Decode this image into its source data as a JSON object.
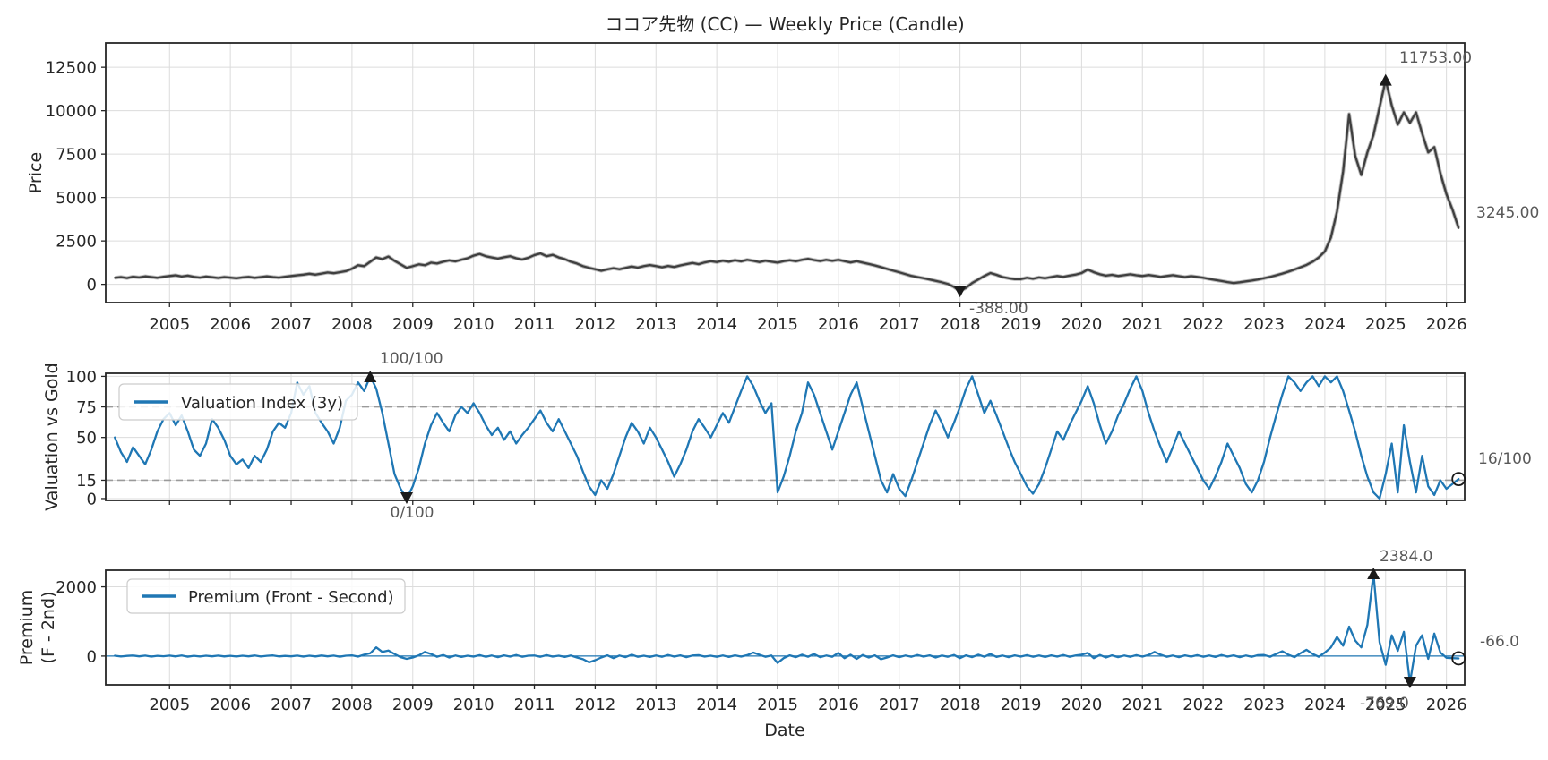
{
  "figure": {
    "title": "ココア先物 (CC) — Weekly Price (Candle)",
    "xlabel": "Date"
  },
  "colors": {
    "price_line": "#3f3f3f",
    "blue_line": "#1f77b4",
    "grid": "#dcdcdc",
    "threshold_dash": "#9a9a9a",
    "spine": "#262626",
    "annotation_text": "#595959",
    "tick_text": "#262626",
    "marker_fill": "#1a1a1a",
    "legend_border": "#cccccc"
  },
  "chart_data": {
    "type": "line",
    "xlim": [
      2003.95,
      2026.3
    ],
    "xticks": [
      2005,
      2006,
      2007,
      2008,
      2009,
      2010,
      2011,
      2012,
      2013,
      2014,
      2015,
      2016,
      2017,
      2018,
      2019,
      2020,
      2021,
      2022,
      2023,
      2024,
      2025,
      2026
    ],
    "x_start": 2004.1,
    "x_step": 0.1,
    "xlabel": "Date",
    "panels": [
      {
        "id": "price",
        "title": "ココア先物 (CC) — Weekly Price (Candle)",
        "ylabel": "Price",
        "ylim": [
          -1050,
          13900
        ],
        "yticks": [
          0,
          2500,
          5000,
          7500,
          10000,
          12500
        ],
        "show_xticklabels": true,
        "values": [
          380,
          420,
          360,
          440,
          400,
          460,
          420,
          380,
          440,
          480,
          520,
          450,
          500,
          430,
          390,
          450,
          410,
          370,
          420,
          390,
          350,
          400,
          430,
          380,
          420,
          460,
          420,
          390,
          440,
          480,
          520,
          560,
          610,
          560,
          620,
          680,
          640,
          700,
          760,
          900,
          1100,
          1050,
          1300,
          1550,
          1450,
          1600,
          1350,
          1150,
          950,
          1050,
          1150,
          1100,
          1250,
          1200,
          1300,
          1380,
          1320,
          1420,
          1500,
          1650,
          1750,
          1620,
          1550,
          1480,
          1560,
          1620,
          1500,
          1430,
          1530,
          1680,
          1780,
          1620,
          1700,
          1550,
          1450,
          1300,
          1200,
          1050,
          950,
          870,
          780,
          860,
          930,
          870,
          950,
          1030,
          960,
          1050,
          1110,
          1050,
          980,
          1060,
          1000,
          1090,
          1160,
          1230,
          1160,
          1260,
          1330,
          1280,
          1360,
          1300,
          1390,
          1320,
          1410,
          1350,
          1280,
          1360,
          1300,
          1250,
          1330,
          1390,
          1330,
          1410,
          1470,
          1400,
          1340,
          1410,
          1350,
          1410,
          1330,
          1260,
          1330,
          1250,
          1170,
          1090,
          990,
          890,
          790,
          690,
          590,
          490,
          420,
          350,
          280,
          200,
          120,
          20,
          -150,
          -388,
          -200,
          80,
          280,
          480,
          650,
          550,
          420,
          350,
          300,
          300,
          380,
          320,
          400,
          350,
          420,
          480,
          430,
          500,
          560,
          650,
          850,
          700,
          580,
          500,
          550,
          480,
          530,
          580,
          520,
          480,
          540,
          490,
          430,
          480,
          530,
          470,
          420,
          470,
          430,
          380,
          310,
          250,
          190,
          130,
          80,
          120,
          170,
          220,
          280,
          350,
          430,
          520,
          620,
          730,
          850,
          980,
          1120,
          1300,
          1550,
          1900,
          2700,
          4200,
          6500,
          9800,
          7400,
          6300,
          7600,
          8600,
          10200,
          11753,
          10300,
          9200,
          9900,
          9300,
          9900,
          8700,
          7600,
          7900,
          6400,
          5200,
          4300,
          3245
        ]
      },
      {
        "id": "valuation",
        "ylabel": "Valuation vs Gold",
        "ylim": [
          -1.5,
          102.5
        ],
        "yticks": [
          0,
          15,
          50,
          75,
          100
        ],
        "legend": "Valuation Index (3y)",
        "thresholds": [
          15,
          75
        ],
        "show_xticklabels": false,
        "values": [
          50,
          38,
          30,
          42,
          35,
          28,
          40,
          55,
          65,
          70,
          60,
          68,
          55,
          40,
          35,
          45,
          65,
          58,
          48,
          35,
          28,
          32,
          25,
          35,
          30,
          40,
          55,
          62,
          58,
          70,
          95,
          85,
          92,
          70,
          62,
          55,
          45,
          58,
          80,
          85,
          95,
          88,
          100,
          90,
          70,
          45,
          20,
          8,
          0,
          10,
          25,
          45,
          60,
          70,
          62,
          55,
          68,
          75,
          70,
          78,
          70,
          60,
          52,
          58,
          48,
          55,
          45,
          52,
          58,
          65,
          72,
          62,
          55,
          65,
          55,
          45,
          35,
          22,
          10,
          3,
          15,
          8,
          20,
          35,
          50,
          62,
          55,
          45,
          58,
          50,
          40,
          30,
          18,
          28,
          40,
          55,
          65,
          58,
          50,
          60,
          70,
          62,
          75,
          88,
          100,
          92,
          80,
          70,
          78,
          5,
          18,
          35,
          55,
          70,
          95,
          85,
          70,
          55,
          40,
          55,
          70,
          85,
          95,
          75,
          55,
          35,
          15,
          5,
          20,
          8,
          2,
          15,
          30,
          45,
          60,
          72,
          62,
          50,
          62,
          75,
          90,
          100,
          85,
          70,
          80,
          68,
          55,
          42,
          30,
          20,
          10,
          4,
          12,
          25,
          40,
          55,
          48,
          60,
          70,
          80,
          92,
          78,
          60,
          45,
          55,
          68,
          78,
          90,
          100,
          88,
          70,
          55,
          42,
          30,
          42,
          55,
          45,
          35,
          25,
          15,
          8,
          18,
          30,
          45,
          35,
          25,
          12,
          5,
          15,
          30,
          50,
          68,
          85,
          100,
          95,
          88,
          95,
          100,
          92,
          100,
          95,
          100,
          88,
          72,
          55,
          35,
          18,
          5,
          0,
          20,
          45,
          5,
          60,
          30,
          5,
          35,
          10,
          3,
          15,
          8,
          12,
          16
        ]
      },
      {
        "id": "premium",
        "ylabel": [
          "Premium",
          "(F - 2nd)"
        ],
        "ylim": [
          -830,
          2480
        ],
        "yticks": [
          0,
          2000
        ],
        "legend": "Premium (Front - Second)",
        "zero_line": 0,
        "show_xticklabels": true,
        "values": [
          10,
          -12,
          6,
          15,
          -8,
          12,
          -15,
          8,
          -5,
          12,
          -10,
          15,
          -18,
          8,
          -12,
          10,
          -8,
          14,
          -10,
          8,
          -14,
          10,
          -8,
          15,
          -12,
          8,
          18,
          -10,
          6,
          -8,
          12,
          -15,
          10,
          -10,
          15,
          -8,
          12,
          -18,
          10,
          20,
          -15,
          40,
          80,
          250,
          120,
          160,
          60,
          -30,
          -80,
          -40,
          20,
          120,
          60,
          -20,
          30,
          -40,
          15,
          -25,
          10,
          -15,
          25,
          -20,
          15,
          -30,
          20,
          -15,
          30,
          -20,
          10,
          15,
          -20,
          25,
          -15,
          10,
          -25,
          15,
          -40,
          -90,
          -180,
          -120,
          -40,
          20,
          -60,
          15,
          -30,
          40,
          -20,
          10,
          -25,
          15,
          -20,
          30,
          -15,
          20,
          -30,
          15,
          25,
          -15,
          10,
          -20,
          15,
          -25,
          20,
          -15,
          25,
          100,
          40,
          -20,
          15,
          -200,
          -60,
          20,
          -30,
          40,
          -20,
          60,
          -30,
          15,
          -20,
          90,
          -60,
          40,
          -80,
          30,
          -40,
          20,
          -90,
          -40,
          20,
          -30,
          15,
          -20,
          30,
          -15,
          20,
          -40,
          15,
          -20,
          30,
          -60,
          20,
          -30,
          40,
          -20,
          60,
          -25,
          15,
          -30,
          20,
          -15,
          25,
          -20,
          15,
          -25,
          20,
          -15,
          30,
          -20,
          15,
          40,
          90,
          -60,
          30,
          -40,
          20,
          -30,
          15,
          -20,
          25,
          -15,
          30,
          120,
          40,
          -20,
          15,
          -30,
          20,
          -15,
          25,
          -20,
          15,
          -25,
          30,
          -15,
          20,
          -30,
          15,
          -20,
          25,
          30,
          -20,
          60,
          140,
          40,
          -30,
          80,
          180,
          60,
          -20,
          100,
          250,
          550,
          300,
          850,
          450,
          250,
          900,
          2384,
          400,
          -250,
          600,
          150,
          700,
          -769,
          300,
          600,
          -80,
          650,
          100,
          -50,
          -60,
          -66
        ]
      }
    ],
    "annotations": {
      "price_high": {
        "panel": "price",
        "x": 2025.0,
        "y": 11753,
        "label": "11753.00",
        "marker": "triangle-up"
      },
      "price_low": {
        "panel": "price",
        "x": 2018.0,
        "y": -388,
        "label": "-388.00",
        "marker": "triangle-down"
      },
      "price_last": {
        "panel": "price",
        "x": 2026.2,
        "y": 3245,
        "label": "3245.00",
        "marker": "none"
      },
      "val_high": {
        "panel": "valuation",
        "x": 2008.3,
        "y": 100,
        "label": "100/100",
        "marker": "triangle-up"
      },
      "val_low": {
        "panel": "valuation",
        "x": 2008.9,
        "y": 0,
        "label": "0/100",
        "marker": "triangle-down"
      },
      "val_last": {
        "panel": "valuation",
        "x": 2026.2,
        "y": 16,
        "label": "16/100",
        "marker": "circle"
      },
      "prem_high": {
        "panel": "premium",
        "x": 2024.8,
        "y": 2384,
        "label": "2384.0",
        "marker": "triangle-up"
      },
      "prem_low": {
        "panel": "premium",
        "x": 2025.4,
        "y": -769,
        "label": "-769.0",
        "marker": "triangle-down"
      },
      "prem_last": {
        "panel": "premium",
        "x": 2026.2,
        "y": -66,
        "label": "-66.0",
        "marker": "circle"
      }
    }
  }
}
